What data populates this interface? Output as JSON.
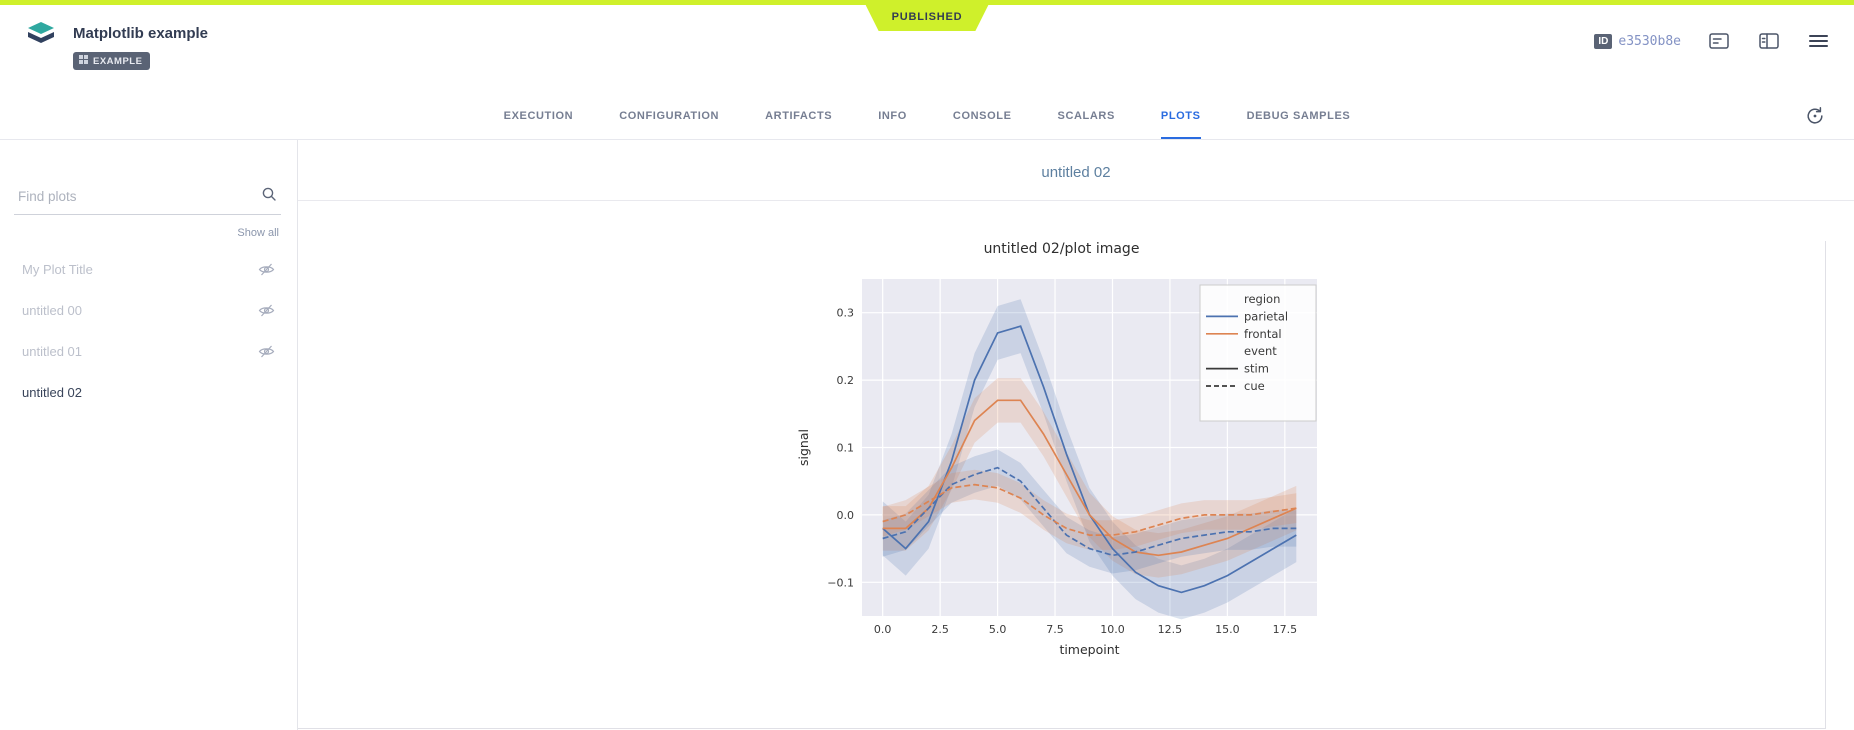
{
  "status": {
    "label": "PUBLISHED",
    "color": "#cff02b"
  },
  "theme": {
    "accent": "#2a6ce0"
  },
  "header": {
    "title": "Matplotlib example",
    "badge": "EXAMPLE",
    "id_label": "ID",
    "id_value": "e3530b8e"
  },
  "icons": {
    "logo": "layers-logo",
    "header_actions": [
      "details-icon",
      "columns-icon",
      "menu-icon"
    ],
    "refresh": "auto-refresh-icon",
    "search": "search-icon",
    "hidden_plot": "eye-off-icon"
  },
  "tabs": [
    {
      "label": "EXECUTION",
      "active": false
    },
    {
      "label": "CONFIGURATION",
      "active": false
    },
    {
      "label": "ARTIFACTS",
      "active": false
    },
    {
      "label": "INFO",
      "active": false
    },
    {
      "label": "CONSOLE",
      "active": false
    },
    {
      "label": "SCALARS",
      "active": false
    },
    {
      "label": "PLOTS",
      "active": true
    },
    {
      "label": "DEBUG SAMPLES",
      "active": false
    }
  ],
  "sidebar": {
    "search_placeholder": "Find plots",
    "show_all": "Show all",
    "plots": [
      {
        "label": "My Plot Title",
        "hidden": true
      },
      {
        "label": "untitled 00",
        "hidden": true
      },
      {
        "label": "untitled 01",
        "hidden": true
      },
      {
        "label": "untitled 02",
        "hidden": false,
        "active": true
      }
    ]
  },
  "main": {
    "group_title": "untitled 02"
  },
  "chart_data": {
    "type": "line",
    "title": "untitled 02/plot image",
    "xlabel": "timepoint",
    "ylabel": "signal",
    "xlim": [
      -0.9,
      18.9
    ],
    "ylim": [
      -0.15,
      0.35
    ],
    "xticks": [
      0.0,
      2.5,
      5.0,
      7.5,
      10.0,
      12.5,
      15.0,
      17.5
    ],
    "yticks": [
      -0.1,
      0.0,
      0.1,
      0.2,
      0.3
    ],
    "background": "#eaeaf2",
    "grid_color": "#ffffff",
    "grid": true,
    "legend_position": "upper right",
    "x": [
      0,
      1,
      2,
      3,
      4,
      5,
      6,
      7,
      8,
      9,
      10,
      11,
      12,
      13,
      14,
      15,
      16,
      17,
      18
    ],
    "series": [
      {
        "name": "parietal-stim",
        "region": "parietal",
        "event": "stim",
        "color": "#4c72b0",
        "dash": "solid",
        "ci": 0.04,
        "values": [
          -0.02,
          -0.05,
          -0.01,
          0.08,
          0.2,
          0.27,
          0.28,
          0.19,
          0.09,
          0.0,
          -0.05,
          -0.085,
          -0.105,
          -0.115,
          -0.105,
          -0.09,
          -0.07,
          -0.05,
          -0.03
        ]
      },
      {
        "name": "frontal-stim",
        "region": "frontal",
        "event": "stim",
        "color": "#dd8452",
        "dash": "solid",
        "ci": 0.033,
        "values": [
          -0.02,
          -0.02,
          0.01,
          0.07,
          0.14,
          0.17,
          0.17,
          0.12,
          0.06,
          0.0,
          -0.035,
          -0.055,
          -0.06,
          -0.055,
          -0.045,
          -0.035,
          -0.02,
          -0.005,
          0.01
        ]
      },
      {
        "name": "parietal-cue",
        "region": "parietal",
        "event": "cue",
        "color": "#4c72b0",
        "dash": "dashed",
        "ci": 0.027,
        "values": [
          -0.035,
          -0.025,
          0.01,
          0.045,
          0.06,
          0.07,
          0.05,
          0.01,
          -0.03,
          -0.05,
          -0.06,
          -0.055,
          -0.045,
          -0.035,
          -0.03,
          -0.025,
          -0.025,
          -0.02,
          -0.02
        ]
      },
      {
        "name": "frontal-cue",
        "region": "frontal",
        "event": "cue",
        "color": "#dd8452",
        "dash": "dashed",
        "ci": 0.022,
        "values": [
          -0.01,
          0.0,
          0.02,
          0.04,
          0.045,
          0.04,
          0.025,
          0.0,
          -0.02,
          -0.03,
          -0.03,
          -0.025,
          -0.015,
          -0.005,
          0.0,
          0.0,
          0.0,
          0.005,
          0.01
        ]
      }
    ],
    "legend": [
      {
        "label": "region",
        "type": "title"
      },
      {
        "label": "parietal",
        "type": "line",
        "color": "#4c72b0",
        "dash": "solid"
      },
      {
        "label": "frontal",
        "type": "line",
        "color": "#dd8452",
        "dash": "solid"
      },
      {
        "label": "event",
        "type": "title"
      },
      {
        "label": "stim",
        "type": "line",
        "color": "#3a3a3a",
        "dash": "solid"
      },
      {
        "label": "cue",
        "type": "line",
        "color": "#3a3a3a",
        "dash": "dashed"
      }
    ]
  }
}
